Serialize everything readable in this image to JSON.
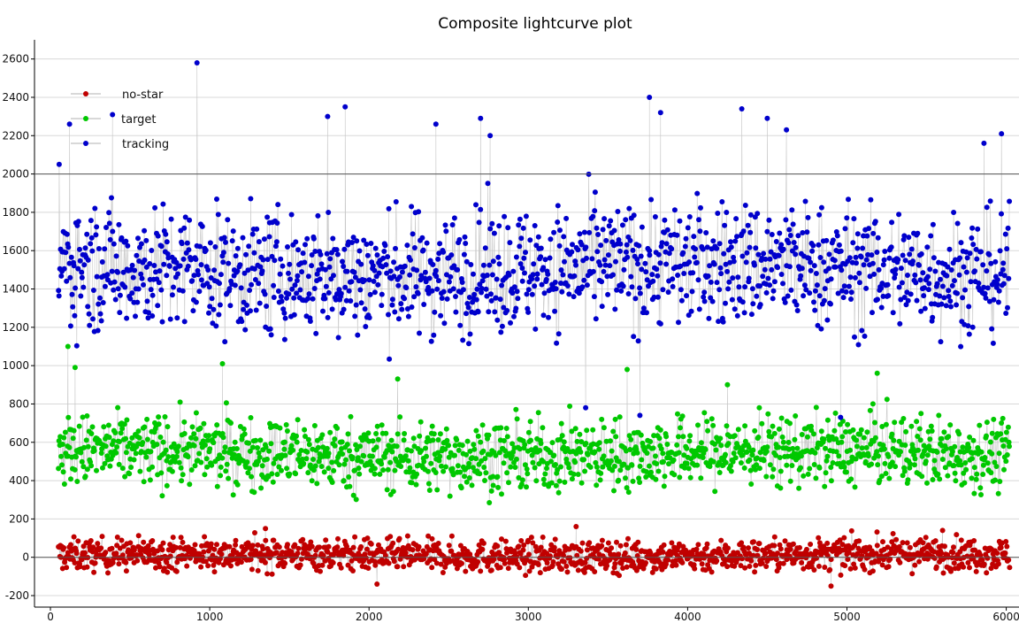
{
  "chart_data": {
    "type": "scatter",
    "title": "Composite lightcurve plot",
    "xlabel": "",
    "ylabel": "",
    "xlim": [
      -100,
      6080
    ],
    "ylim": [
      -260,
      2700
    ],
    "xticks": [
      0,
      1000,
      2000,
      3000,
      4000,
      5000,
      6000
    ],
    "yticks": [
      -200,
      0,
      200,
      400,
      600,
      800,
      1000,
      1200,
      1400,
      1600,
      1800,
      2000,
      2200,
      2400,
      2600
    ],
    "grid": true,
    "reference_lines_y": [
      0,
      2000
    ],
    "legend_position": "top-left",
    "x_range_of_points": [
      50,
      6020
    ],
    "series": [
      {
        "name": "no-star",
        "color": "#c00000",
        "mean": 10,
        "spread": 55,
        "outliers": [
          [
            1350,
            150
          ],
          [
            2050,
            -140
          ],
          [
            3300,
            160
          ],
          [
            4900,
            -150
          ],
          [
            5600,
            140
          ]
        ]
      },
      {
        "name": "target",
        "color": "#00c800",
        "mean": 540,
        "spread": 120,
        "outliers": [
          [
            110,
            1100
          ],
          [
            155,
            990
          ],
          [
            1080,
            1010
          ],
          [
            2180,
            930
          ],
          [
            3620,
            980
          ],
          [
            4250,
            900
          ],
          [
            5190,
            960
          ]
        ]
      },
      {
        "name": "tracking",
        "color": "#0000cc",
        "mean": 1500,
        "spread": 210,
        "outliers": [
          [
            55,
            2050
          ],
          [
            120,
            2260
          ],
          [
            390,
            2310
          ],
          [
            920,
            2580
          ],
          [
            1740,
            2300
          ],
          [
            1850,
            2350
          ],
          [
            2420,
            2260
          ],
          [
            2700,
            2290
          ],
          [
            2760,
            2200
          ],
          [
            3760,
            2400
          ],
          [
            3830,
            2320
          ],
          [
            4340,
            2340
          ],
          [
            4500,
            2290
          ],
          [
            4620,
            2230
          ],
          [
            5860,
            2160
          ],
          [
            5970,
            2210
          ],
          [
            3360,
            780
          ],
          [
            3700,
            740
          ],
          [
            4960,
            730
          ]
        ]
      }
    ]
  }
}
